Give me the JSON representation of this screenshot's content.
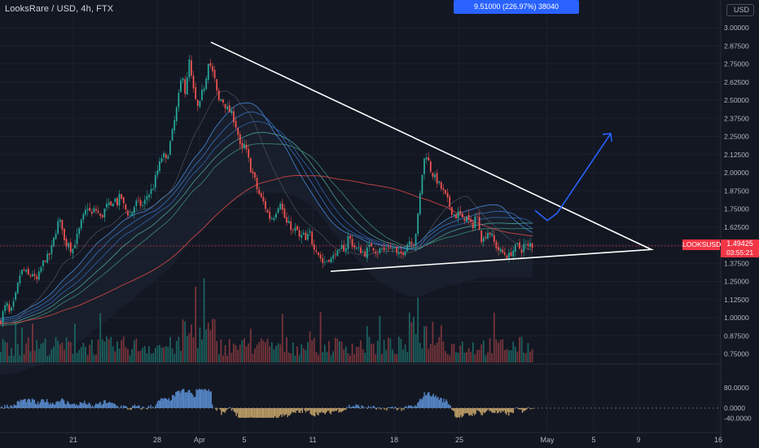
{
  "header": {
    "symbol": "LooksRare / USD, 4h, FTX",
    "measure": "9.51000 (226.97%) 38040",
    "currency": "USD"
  },
  "price_tag": {
    "symbol": "LOOKSUSD",
    "price": "1.49425",
    "countdown": "03:55:21"
  },
  "chart_data": {
    "type": "candlestick",
    "title": "LooksRare / USD, 4h, FTX",
    "price_axis": {
      "ticks": [
        "3.00000",
        "2.87500",
        "2.75000",
        "2.62500",
        "2.50000",
        "2.37500",
        "2.25000",
        "2.12500",
        "2.00000",
        "1.87500",
        "1.75000",
        "1.62500",
        "1.50000",
        "1.37500",
        "1.25000",
        "1.12500",
        "1.00000",
        "0.87500",
        "0.75000"
      ],
      "range": [
        0.72,
        3.06
      ]
    },
    "oscillator_axis": {
      "ticks": [
        "80.0000",
        "0.0000",
        "-40.0000"
      ],
      "range": [
        -48,
        85
      ]
    },
    "time_axis": {
      "ticks": [
        "21",
        "28",
        "Apr",
        "5",
        "11",
        "18",
        "25",
        "May",
        "5",
        "9",
        "16"
      ]
    },
    "current_price": 1.49425,
    "triangle": {
      "apex_price": 1.47,
      "upper_start": {
        "date": "Apr 2",
        "price": 2.9
      },
      "lower_start": {
        "date": "Apr 12",
        "price": 1.32
      }
    },
    "projection_prices": [
      1.74,
      1.67,
      1.72,
      2.27
    ],
    "price_path": [
      [
        0,
        0.97
      ],
      [
        4,
        1.04
      ],
      [
        8,
        1.1
      ],
      [
        12,
        1.02
      ],
      [
        16,
        1.08
      ],
      [
        20,
        1.17
      ],
      [
        24,
        1.29
      ],
      [
        28,
        1.33
      ],
      [
        32,
        1.31
      ],
      [
        36,
        1.28
      ],
      [
        40,
        1.31
      ],
      [
        44,
        1.24
      ],
      [
        48,
        1.3
      ],
      [
        52,
        1.37
      ],
      [
        56,
        1.41
      ],
      [
        60,
        1.42
      ],
      [
        64,
        1.49
      ],
      [
        68,
        1.59
      ],
      [
        72,
        1.67
      ],
      [
        76,
        1.64
      ],
      [
        80,
        1.49
      ],
      [
        84,
        1.53
      ],
      [
        88,
        1.45
      ],
      [
        92,
        1.52
      ],
      [
        96,
        1.58
      ],
      [
        100,
        1.66
      ],
      [
        104,
        1.72
      ],
      [
        108,
        1.77
      ],
      [
        112,
        1.7
      ],
      [
        116,
        1.75
      ],
      [
        120,
        1.73
      ],
      [
        124,
        1.68
      ],
      [
        128,
        1.74
      ],
      [
        132,
        1.78
      ],
      [
        136,
        1.76
      ],
      [
        140,
        1.83
      ],
      [
        144,
        1.79
      ],
      [
        148,
        1.85
      ],
      [
        152,
        1.77
      ],
      [
        156,
        1.73
      ],
      [
        160,
        1.7
      ],
      [
        164,
        1.76
      ],
      [
        168,
        1.8
      ],
      [
        172,
        1.78
      ],
      [
        176,
        1.77
      ],
      [
        180,
        1.84
      ],
      [
        184,
        1.86
      ],
      [
        188,
        1.9
      ],
      [
        192,
        1.99
      ],
      [
        196,
        2.06
      ],
      [
        200,
        2.13
      ],
      [
        204,
        2.08
      ],
      [
        208,
        2.18
      ],
      [
        212,
        2.29
      ],
      [
        216,
        2.41
      ],
      [
        220,
        2.55
      ],
      [
        224,
        2.7
      ],
      [
        228,
        2.52
      ],
      [
        232,
        2.79
      ],
      [
        236,
        2.61
      ],
      [
        240,
        2.5
      ],
      [
        244,
        2.43
      ],
      [
        248,
        2.55
      ],
      [
        252,
        2.62
      ],
      [
        256,
        2.78
      ],
      [
        260,
        2.71
      ],
      [
        264,
        2.63
      ],
      [
        268,
        2.49
      ],
      [
        272,
        2.51
      ],
      [
        276,
        2.47
      ],
      [
        280,
        2.43
      ],
      [
        284,
        2.41
      ],
      [
        288,
        2.36
      ],
      [
        292,
        2.27
      ],
      [
        296,
        2.14
      ],
      [
        300,
        2.19
      ],
      [
        304,
        2.12
      ],
      [
        308,
        2.02
      ],
      [
        312,
        1.97
      ],
      [
        316,
        1.88
      ],
      [
        320,
        1.83
      ],
      [
        324,
        1.79
      ],
      [
        328,
        1.73
      ],
      [
        332,
        1.68
      ],
      [
        336,
        1.7
      ],
      [
        340,
        1.75
      ],
      [
        344,
        1.81
      ],
      [
        348,
        1.71
      ],
      [
        352,
        1.65
      ],
      [
        356,
        1.64
      ],
      [
        360,
        1.59
      ],
      [
        364,
        1.62
      ],
      [
        368,
        1.54
      ],
      [
        372,
        1.58
      ],
      [
        376,
        1.52
      ],
      [
        380,
        1.6
      ],
      [
        384,
        1.5
      ],
      [
        388,
        1.48
      ],
      [
        392,
        1.43
      ],
      [
        396,
        1.38
      ],
      [
        400,
        1.39
      ],
      [
        404,
        1.41
      ],
      [
        408,
        1.4
      ],
      [
        412,
        1.46
      ],
      [
        416,
        1.43
      ],
      [
        420,
        1.49
      ],
      [
        424,
        1.47
      ],
      [
        428,
        1.57
      ],
      [
        432,
        1.51
      ],
      [
        436,
        1.48
      ],
      [
        440,
        1.47
      ],
      [
        444,
        1.46
      ],
      [
        448,
        1.44
      ],
      [
        452,
        1.48
      ],
      [
        456,
        1.5
      ],
      [
        460,
        1.47
      ],
      [
        464,
        1.45
      ],
      [
        468,
        1.48
      ],
      [
        472,
        1.46
      ],
      [
        476,
        1.5
      ],
      [
        480,
        1.47
      ],
      [
        484,
        1.49
      ],
      [
        488,
        1.42
      ],
      [
        492,
        1.44
      ],
      [
        496,
        1.46
      ],
      [
        500,
        1.51
      ],
      [
        504,
        1.54
      ],
      [
        508,
        1.51
      ],
      [
        512,
        1.63
      ],
      [
        516,
        1.86
      ],
      [
        520,
        2.08
      ],
      [
        524,
        2.13
      ],
      [
        528,
        2.03
      ],
      [
        532,
        1.98
      ],
      [
        536,
        1.95
      ],
      [
        540,
        1.91
      ],
      [
        544,
        1.87
      ],
      [
        548,
        1.83
      ],
      [
        552,
        1.77
      ],
      [
        556,
        1.72
      ],
      [
        560,
        1.7
      ],
      [
        564,
        1.73
      ],
      [
        568,
        1.67
      ],
      [
        572,
        1.7
      ],
      [
        576,
        1.66
      ],
      [
        580,
        1.62
      ],
      [
        584,
        1.71
      ],
      [
        588,
        1.65
      ],
      [
        592,
        1.52
      ],
      [
        596,
        1.57
      ],
      [
        600,
        1.6
      ],
      [
        604,
        1.56
      ],
      [
        608,
        1.5
      ],
      [
        612,
        1.47
      ],
      [
        616,
        1.45
      ],
      [
        620,
        1.44
      ],
      [
        624,
        1.42
      ],
      [
        628,
        1.45
      ],
      [
        632,
        1.48
      ],
      [
        636,
        1.5
      ],
      [
        640,
        1.46
      ],
      [
        644,
        1.51
      ],
      [
        648,
        1.48
      ],
      [
        652,
        1.52
      ],
      [
        654,
        1.49
      ]
    ]
  }
}
